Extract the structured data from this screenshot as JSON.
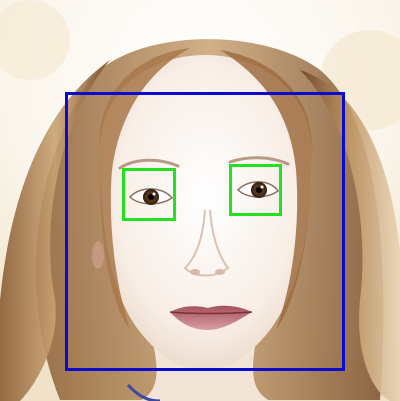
{
  "image": {
    "subject": "face-detection-result",
    "face_detections": 1,
    "eye_detections": 2
  },
  "colors": {
    "face_box": "#0b0bd0",
    "eye_box": "#22e022",
    "background": "#f7f1e6",
    "hair": "#b98a58",
    "skin": "#f6ebe2"
  }
}
